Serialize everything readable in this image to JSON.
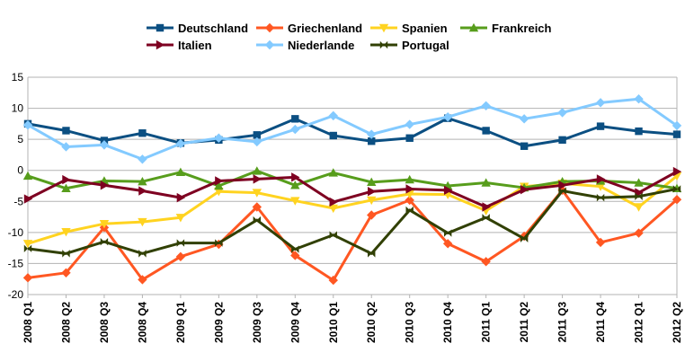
{
  "chart_data": {
    "type": "line",
    "title": "",
    "xlabel": "",
    "ylabel": "",
    "ylim": [
      -20,
      15
    ],
    "yticks": [
      -20,
      -15,
      -10,
      -5,
      0,
      5,
      10,
      15
    ],
    "grid": true,
    "legend_position": "top-center",
    "categories": [
      "2008 Q1",
      "2008 Q2",
      "2008 Q3",
      "2008 Q4",
      "2009 Q1",
      "2009 Q2",
      "2009 Q3",
      "2009 Q4",
      "2010 Q1",
      "2010 Q2",
      "2010 Q3",
      "2010 Q4",
      "2011 Q1",
      "2011 Q2",
      "2011 Q3",
      "2011 Q4",
      "2012 Q1",
      "2012 Q2"
    ],
    "series": [
      {
        "name": "Deutschland",
        "color": "#0b4f82",
        "marker": "square",
        "values": [
          7.5,
          6.4,
          4.8,
          6.0,
          4.4,
          4.9,
          5.7,
          8.3,
          5.6,
          4.7,
          5.2,
          8.4,
          6.4,
          3.9,
          4.9,
          7.1,
          6.3,
          5.8
        ]
      },
      {
        "name": "Griechenland",
        "color": "#ff5722",
        "marker": "diamond",
        "values": [
          -17.3,
          -16.5,
          -9.2,
          -17.6,
          -13.9,
          -11.9,
          -5.9,
          -13.7,
          -17.7,
          -7.2,
          -4.8,
          -11.8,
          -14.7,
          -10.6,
          -3.2,
          -11.6,
          -10.1,
          -4.7
        ]
      },
      {
        "name": "Spanien",
        "color": "#ffd320",
        "marker": "triangle-down",
        "values": [
          -11.8,
          -9.9,
          -8.6,
          -8.3,
          -7.6,
          -3.4,
          -3.6,
          -4.9,
          -6.1,
          -4.8,
          -3.8,
          -3.9,
          -6.5,
          -2.6,
          -2.1,
          -2.6,
          -5.9,
          -0.9
        ]
      },
      {
        "name": "Frankreich",
        "color": "#579d1c",
        "marker": "triangle-up",
        "values": [
          -0.9,
          -2.9,
          -1.7,
          -1.8,
          -0.3,
          -2.5,
          -0.1,
          -2.4,
          -0.4,
          -1.9,
          -1.5,
          -2.5,
          -2.0,
          -2.8,
          -1.8,
          -1.7,
          -2.0,
          -2.9
        ]
      },
      {
        "name": "Italien",
        "color": "#7e0021",
        "marker": "triangle-right",
        "values": [
          -4.6,
          -1.5,
          -2.4,
          -3.3,
          -4.4,
          -1.7,
          -1.4,
          -1.1,
          -5.1,
          -3.4,
          -3.0,
          -3.2,
          -5.9,
          -3.1,
          -2.4,
          -1.4,
          -3.6,
          -0.2
        ]
      },
      {
        "name": "Niederlande",
        "color": "#83caff",
        "marker": "diamond",
        "values": [
          7.3,
          3.8,
          4.1,
          1.8,
          4.3,
          5.2,
          4.6,
          6.6,
          8.8,
          5.8,
          7.4,
          8.6,
          10.4,
          8.3,
          9.3,
          10.9,
          11.5,
          7.2
        ]
      },
      {
        "name": "Portugal",
        "color": "#314004",
        "marker": "bowtie",
        "values": [
          -12.6,
          -13.4,
          -11.5,
          -13.4,
          -11.7,
          -11.7,
          -8.0,
          -12.7,
          -10.4,
          -13.4,
          -6.4,
          -10.1,
          -7.6,
          -11.0,
          -3.3,
          -4.4,
          -4.2,
          -3.0
        ]
      }
    ]
  }
}
